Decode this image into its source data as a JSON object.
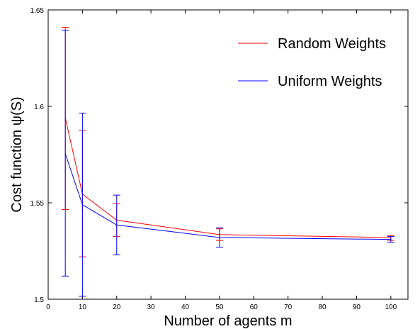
{
  "chart_data": {
    "type": "line",
    "xlabel": "Number of agents m",
    "ylabel": "Cost function ψ(S)",
    "xlim": [
      0,
      105
    ],
    "ylim": [
      1.5,
      1.65
    ],
    "x_ticks": [
      0,
      10,
      20,
      30,
      40,
      50,
      60,
      70,
      80,
      90,
      100
    ],
    "y_ticks": [
      1.5,
      1.55,
      1.6,
      1.65
    ],
    "y_tick_labels": [
      "1.5",
      "1.55",
      "1.6",
      "1.65"
    ],
    "grid": false,
    "legend_position": "top-right",
    "x": [
      5,
      10,
      20,
      50,
      100
    ],
    "series": [
      {
        "name": "Random Weights",
        "color": "#ff0000",
        "values": [
          1.594,
          1.5545,
          1.541,
          1.5335,
          1.532
        ],
        "err_low": [
          1.5465,
          1.522,
          1.5325,
          1.5305,
          1.5305
        ],
        "err_high": [
          1.641,
          1.5875,
          1.5495,
          1.5365,
          1.533
        ]
      },
      {
        "name": "Uniform Weights",
        "color": "#0000ff",
        "values": [
          1.5755,
          1.549,
          1.5385,
          1.532,
          1.531
        ],
        "err_low": [
          1.512,
          1.5015,
          1.523,
          1.527,
          1.5295
        ],
        "err_high": [
          1.6395,
          1.5965,
          1.554,
          1.537,
          1.5325
        ]
      }
    ]
  }
}
